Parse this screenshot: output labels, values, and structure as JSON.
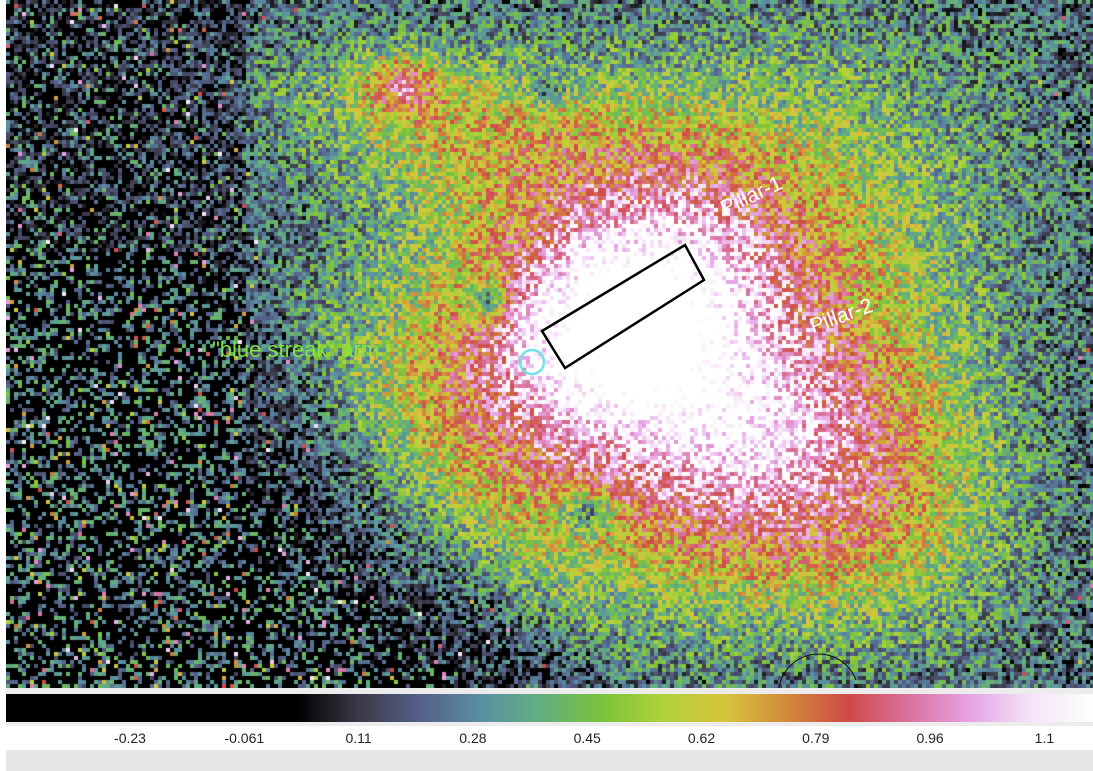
{
  "viewer": {
    "annotations": {
      "pillar1_label": "Pillar-1",
      "pillar2_label": "Pillar-2",
      "arm_label": "\"blue streak\" arm"
    },
    "colors": {
      "pillar_label": "#ffffff",
      "arm_label": "#7ee63a",
      "circle_region": "#6fe2e8",
      "box_region": "#000000"
    }
  },
  "colorbar": {
    "colormap_stops": [
      "#000000",
      "#3a3a48",
      "#56608a",
      "#5a8fa3",
      "#63b07f",
      "#7cc33a",
      "#b2d33a",
      "#d8c53c",
      "#d28a3c",
      "#cf4a48",
      "#d9739f",
      "#e6a4e6",
      "#f6e6f8",
      "#ffffff"
    ],
    "tick_labels": [
      "-0.23",
      "-0.061",
      "0.11",
      "0.28",
      "0.45",
      "0.62",
      "0.79",
      "0.96",
      "1.1"
    ],
    "tick_values": [
      -0.23,
      -0.061,
      0.11,
      0.28,
      0.45,
      0.62,
      0.79,
      0.96,
      1.1
    ],
    "range": [
      -0.5,
      1.3
    ]
  }
}
